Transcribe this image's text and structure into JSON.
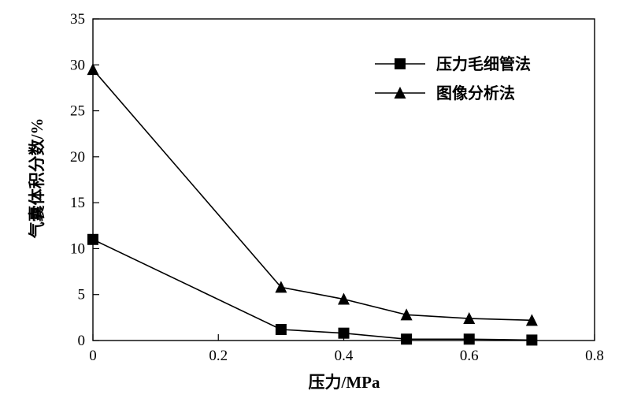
{
  "chart_data": {
    "type": "line",
    "xlabel": "压力/MPa",
    "ylabel": "气囊体积分数/%",
    "xlim": [
      0,
      0.8
    ],
    "ylim": [
      0,
      35
    ],
    "xticks": [
      "0",
      "0.2",
      "0.4",
      "0.6",
      "0.8"
    ],
    "yticks": [
      "0",
      "5",
      "10",
      "15",
      "20",
      "25",
      "30",
      "35"
    ],
    "grid": false,
    "legend_position": "top-right",
    "series": [
      {
        "name": "压力毛细管法",
        "marker": "square",
        "color": "#000000",
        "x": [
          0,
          0.3,
          0.4,
          0.5,
          0.6,
          0.7
        ],
        "y": [
          11.0,
          1.2,
          0.8,
          0.15,
          0.15,
          0.05
        ]
      },
      {
        "name": "图像分析法",
        "marker": "triangle",
        "color": "#000000",
        "x": [
          0,
          0.3,
          0.4,
          0.5,
          0.6,
          0.7
        ],
        "y": [
          29.5,
          5.8,
          4.5,
          2.8,
          2.4,
          2.2
        ]
      }
    ]
  }
}
